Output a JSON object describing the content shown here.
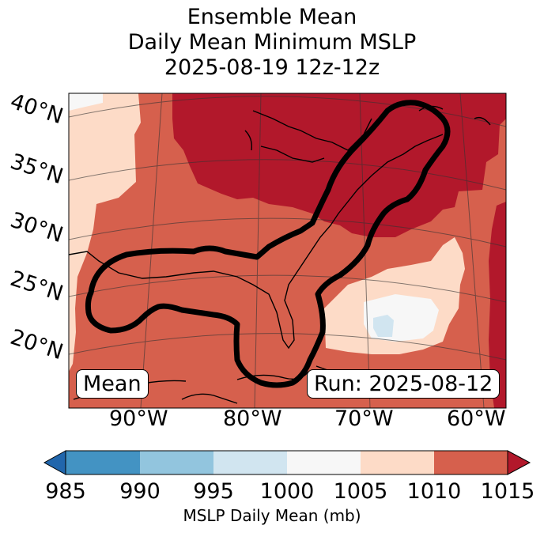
{
  "title": {
    "line1": "Ensemble Mean",
    "line2": "Daily Mean Minimum MSLP",
    "line3": "2025-08-19 12z-12z"
  },
  "map": {
    "lat_labels": [
      "40°N",
      "35°N",
      "30°N",
      "25°N",
      "20°N"
    ],
    "lon_labels": [
      "90°W",
      "80°W",
      "70°W",
      "60°W"
    ],
    "mean_box": "Mean",
    "run_box": "Run: 2025-08-12"
  },
  "colorbar": {
    "ticks": [
      "985",
      "990",
      "995",
      "1000",
      "1005",
      "1010",
      "1015"
    ],
    "label": "MSLP Daily Mean (mb)",
    "colors": [
      "#2166ac",
      "#4393c3",
      "#92c5de",
      "#d1e5f0",
      "#f7f7f7",
      "#fddbc7",
      "#d6604d",
      "#b2182b"
    ]
  }
}
